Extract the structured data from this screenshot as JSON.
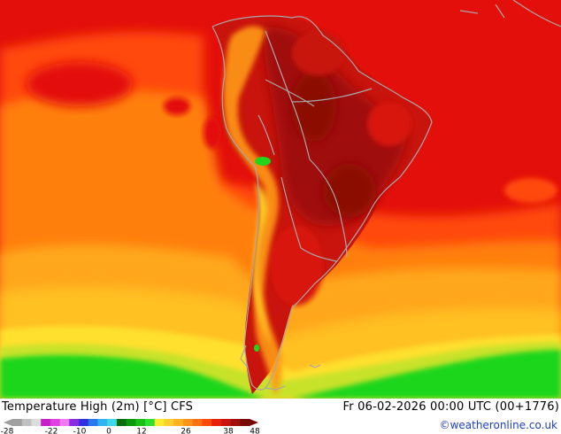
{
  "map": {
    "title": "Temperature High (2m) [°C] CFS",
    "valid_time": "Fr 06-02-2026 00:00 UTC (00+1776)",
    "credit": "©weatheronline.co.uk",
    "colors": {
      "deep_red": "#8b0e06",
      "dark_red": "#b8140e",
      "red": "#e30f0a",
      "red_orange": "#ff4a08",
      "orange": "#ff7f0a",
      "light_orange": "#ffa71a",
      "amber": "#ffc021",
      "yellow": "#ffe02e",
      "yellow_green": "#c8e22a",
      "green": "#1fd61a",
      "coast": "#a8a8a8"
    }
  },
  "legend": {
    "ticks": [
      "-28",
      "-22",
      "-10",
      "0",
      "12",
      "26",
      "38",
      "48"
    ],
    "colors": [
      "#a0a0a0",
      "#c0c0c0",
      "#dcdcdc",
      "#c820c8",
      "#e040e0",
      "#f07af0",
      "#8a2be2",
      "#3030e0",
      "#2878f0",
      "#30b4f0",
      "#40d8e8",
      "#0a6e0a",
      "#0a9a0a",
      "#18c018",
      "#30e030",
      "#ffea30",
      "#ffce2a",
      "#ffb220",
      "#ff9418",
      "#ff7010",
      "#ff4a08",
      "#e82008",
      "#c8140c",
      "#a00e08",
      "#780a06"
    ]
  }
}
